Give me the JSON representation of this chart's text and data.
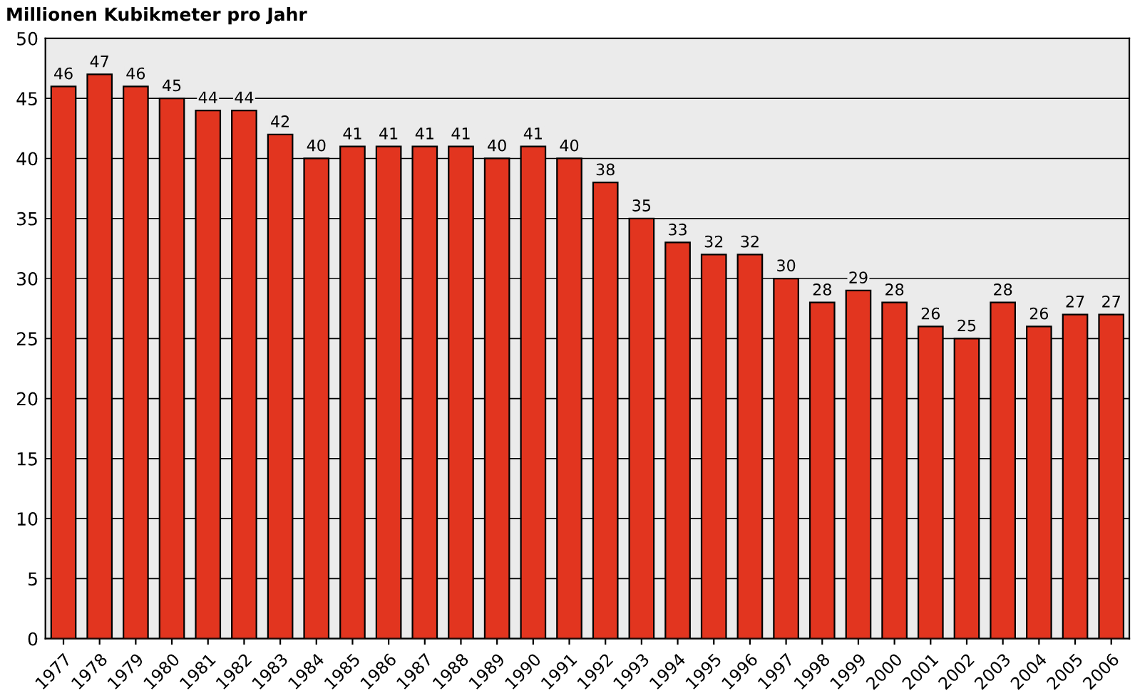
{
  "chart_data": {
    "type": "bar",
    "title": "Millionen Kubikmeter pro Jahr",
    "categories": [
      "1977",
      "1978",
      "1979",
      "1980",
      "1981",
      "1982",
      "1983",
      "1984",
      "1985",
      "1986",
      "1987",
      "1988",
      "1989",
      "1990",
      "1991",
      "1992",
      "1993",
      "1994",
      "1995",
      "1996",
      "1997",
      "1998",
      "1999",
      "2000",
      "2001",
      "2002",
      "2003",
      "2004",
      "2005",
      "2006"
    ],
    "values": [
      46,
      47,
      46,
      45,
      44,
      44,
      42,
      40,
      41,
      41,
      41,
      41,
      40,
      41,
      40,
      38,
      35,
      33,
      32,
      32,
      30,
      28,
      29,
      28,
      26,
      25,
      28,
      26,
      27,
      27
    ],
    "color": "#e2351f",
    "data_labels": true,
    "ylim": [
      0,
      50
    ],
    "yticks": [
      0,
      5,
      10,
      15,
      20,
      25,
      30,
      35,
      40,
      45,
      50
    ],
    "grid": "y"
  }
}
